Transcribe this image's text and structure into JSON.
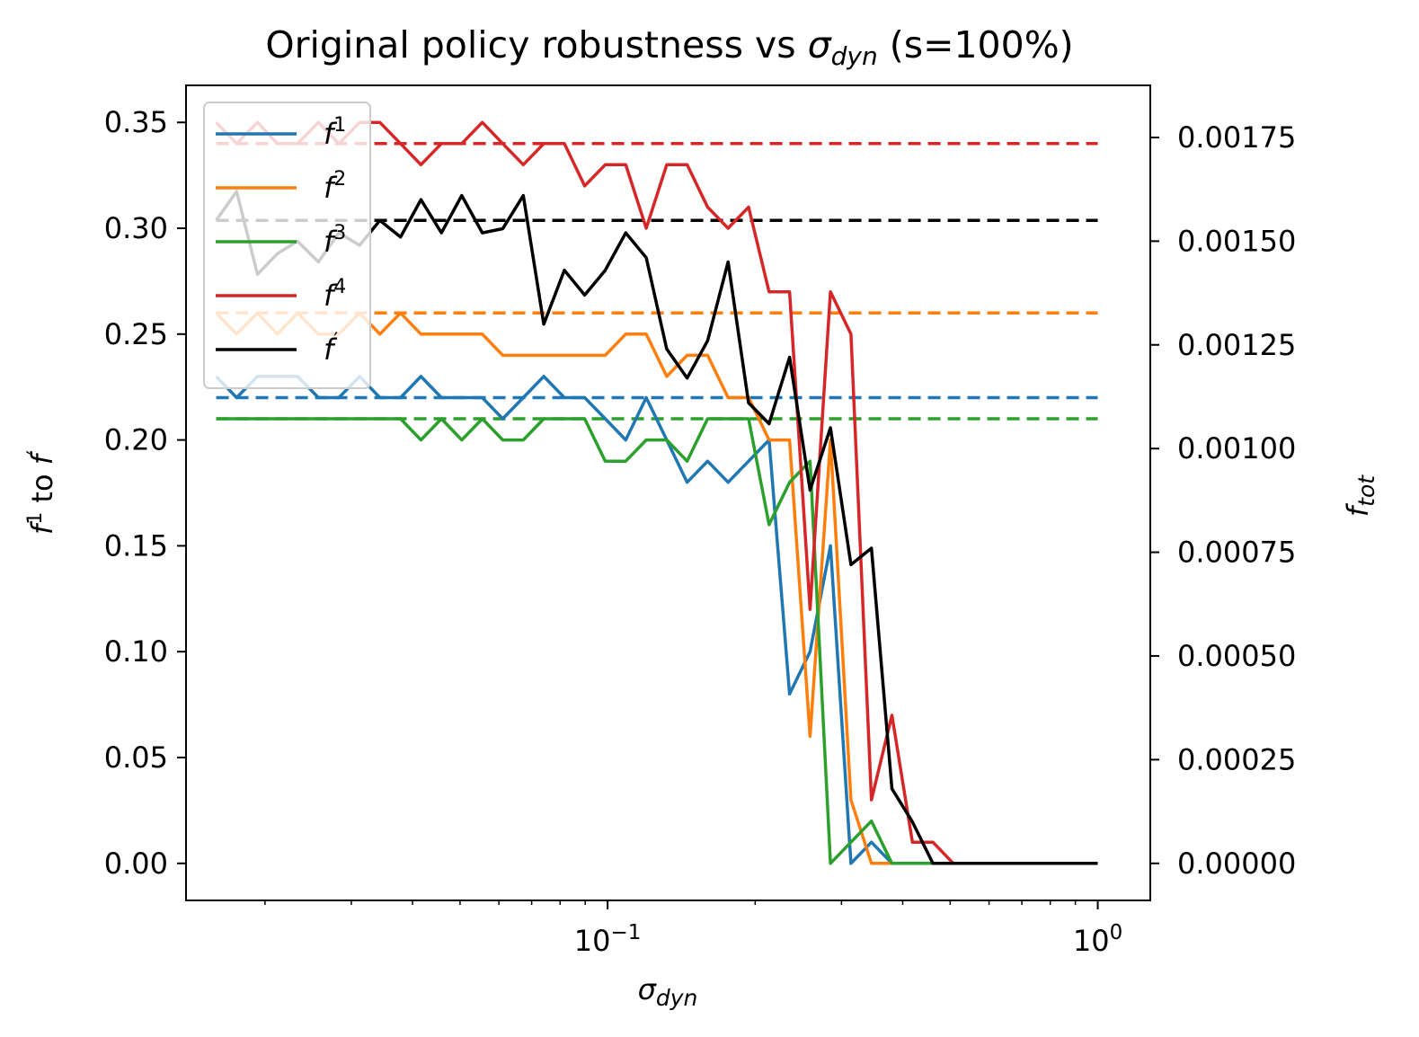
{
  "chart_data": {
    "type": "line",
    "title": {
      "prefix": "Original policy robustness vs ",
      "sym": "σ",
      "sub": "dyn",
      "suffix": " (s=100%)"
    },
    "xlabel": {
      "sym": "σ",
      "sub": "dyn"
    },
    "ylabel_left": {
      "a": "f",
      "a_sup": "1",
      "mid": " to ",
      "b": "f",
      "b_sup": "′"
    },
    "ylabel_right": {
      "sym": "f",
      "sub": "tot"
    },
    "x_scale": "log",
    "xlim": [
      0.0138,
      1.28
    ],
    "ylim_left": [
      -0.0175,
      0.3675
    ],
    "ylim_right": [
      -8.93e-05,
      0.0018756
    ],
    "xticks": [
      {
        "value": 0.1,
        "base": "10",
        "exp": "−1"
      },
      {
        "value": 1,
        "base": "10",
        "exp": "0"
      }
    ],
    "yticks_left": [
      {
        "value": 0.0,
        "label": "0.00"
      },
      {
        "value": 0.05,
        "label": "0.05"
      },
      {
        "value": 0.1,
        "label": "0.10"
      },
      {
        "value": 0.15,
        "label": "0.15"
      },
      {
        "value": 0.2,
        "label": "0.20"
      },
      {
        "value": 0.25,
        "label": "0.25"
      },
      {
        "value": 0.3,
        "label": "0.30"
      },
      {
        "value": 0.35,
        "label": "0.35"
      }
    ],
    "yticks_right": [
      {
        "value": 0.0,
        "label": "0.00000"
      },
      {
        "value": 0.00025,
        "label": "0.00025"
      },
      {
        "value": 0.0005,
        "label": "0.00050"
      },
      {
        "value": 0.00075,
        "label": "0.00075"
      },
      {
        "value": 0.001,
        "label": "0.00100"
      },
      {
        "value": 0.00125,
        "label": "0.00125"
      },
      {
        "value": 0.0015,
        "label": "0.00150"
      },
      {
        "value": 0.00175,
        "label": "0.00175"
      }
    ],
    "grid": false,
    "legend_position": "top-left",
    "x": [
      0.0159,
      0.0175,
      0.0193,
      0.0212,
      0.0233,
      0.0257,
      0.0283,
      0.0312,
      0.0343,
      0.0378,
      0.0416,
      0.0458,
      0.0504,
      0.0555,
      0.0611,
      0.0673,
      0.0741,
      0.0816,
      0.0898,
      0.0989,
      0.1089,
      0.1199,
      0.132,
      0.1453,
      0.16,
      0.1761,
      0.1939,
      0.2135,
      0.2351,
      0.2588,
      0.2849,
      0.3137,
      0.3454,
      0.3802,
      0.4186,
      0.4609,
      0.5074,
      0.5587,
      0.6151,
      0.6772,
      0.7456,
      0.8209,
      0.9038,
      1.0
    ],
    "series": [
      {
        "name": "f",
        "sup": "1",
        "color": "#1f77b4",
        "axis": "left",
        "baseline": 0.22,
        "values": [
          0.23,
          0.22,
          0.23,
          0.23,
          0.23,
          0.22,
          0.22,
          0.23,
          0.22,
          0.22,
          0.23,
          0.22,
          0.22,
          0.22,
          0.21,
          0.22,
          0.23,
          0.22,
          0.22,
          0.21,
          0.2,
          0.22,
          0.2,
          0.18,
          0.19,
          0.18,
          0.19,
          0.2,
          0.08,
          0.1,
          0.15,
          0.0,
          0.01,
          0.0,
          0,
          0,
          0,
          0,
          0,
          0,
          0,
          0,
          0,
          0
        ]
      },
      {
        "name": "f",
        "sup": "2",
        "color": "#ff7f0e",
        "axis": "left",
        "baseline": 0.26,
        "values": [
          0.26,
          0.25,
          0.26,
          0.25,
          0.26,
          0.25,
          0.25,
          0.26,
          0.25,
          0.26,
          0.25,
          0.25,
          0.25,
          0.25,
          0.24,
          0.24,
          0.24,
          0.24,
          0.24,
          0.24,
          0.25,
          0.25,
          0.23,
          0.24,
          0.24,
          0.22,
          0.22,
          0.2,
          0.2,
          0.06,
          0.2,
          0.03,
          0.0,
          0.0,
          0,
          0,
          0,
          0,
          0,
          0,
          0,
          0,
          0,
          0
        ]
      },
      {
        "name": "f",
        "sup": "3",
        "color": "#2ca02c",
        "axis": "left",
        "baseline": 0.21,
        "values": [
          0.21,
          0.21,
          0.21,
          0.21,
          0.21,
          0.21,
          0.21,
          0.21,
          0.21,
          0.21,
          0.2,
          0.21,
          0.2,
          0.21,
          0.2,
          0.2,
          0.21,
          0.21,
          0.21,
          0.19,
          0.19,
          0.2,
          0.2,
          0.19,
          0.21,
          0.21,
          0.21,
          0.16,
          0.18,
          0.19,
          0.0,
          0.01,
          0.02,
          0.0,
          0,
          0,
          0,
          0,
          0,
          0,
          0,
          0,
          0,
          0
        ]
      },
      {
        "name": "f",
        "sup": "4",
        "color": "#d62728",
        "axis": "left",
        "baseline": 0.34,
        "values": [
          0.35,
          0.34,
          0.35,
          0.34,
          0.34,
          0.35,
          0.34,
          0.35,
          0.35,
          0.34,
          0.33,
          0.34,
          0.34,
          0.35,
          0.34,
          0.33,
          0.34,
          0.34,
          0.32,
          0.33,
          0.33,
          0.3,
          0.33,
          0.33,
          0.31,
          0.3,
          0.31,
          0.27,
          0.27,
          0.12,
          0.27,
          0.25,
          0.03,
          0.07,
          0.01,
          0.01,
          0.0,
          0,
          0,
          0,
          0,
          0,
          0,
          0
        ]
      },
      {
        "name": "f",
        "sup": "′",
        "color": "#000000",
        "axis": "right",
        "baseline": 0.00155,
        "values": [
          0.00155,
          0.00162,
          0.00142,
          0.00147,
          0.0015,
          0.00145,
          0.00152,
          0.00149,
          0.00155,
          0.00151,
          0.0016,
          0.00152,
          0.00161,
          0.00152,
          0.00153,
          0.00161,
          0.0013,
          0.00143,
          0.00137,
          0.00143,
          0.00152,
          0.00146,
          0.00124,
          0.00117,
          0.00126,
          0.00145,
          0.00111,
          0.00106,
          0.00122,
          0.0009,
          0.00105,
          0.00072,
          0.00076,
          0.00018,
          0.0001,
          0.0,
          0,
          0,
          0,
          0,
          0,
          0,
          0,
          0
        ]
      }
    ]
  }
}
